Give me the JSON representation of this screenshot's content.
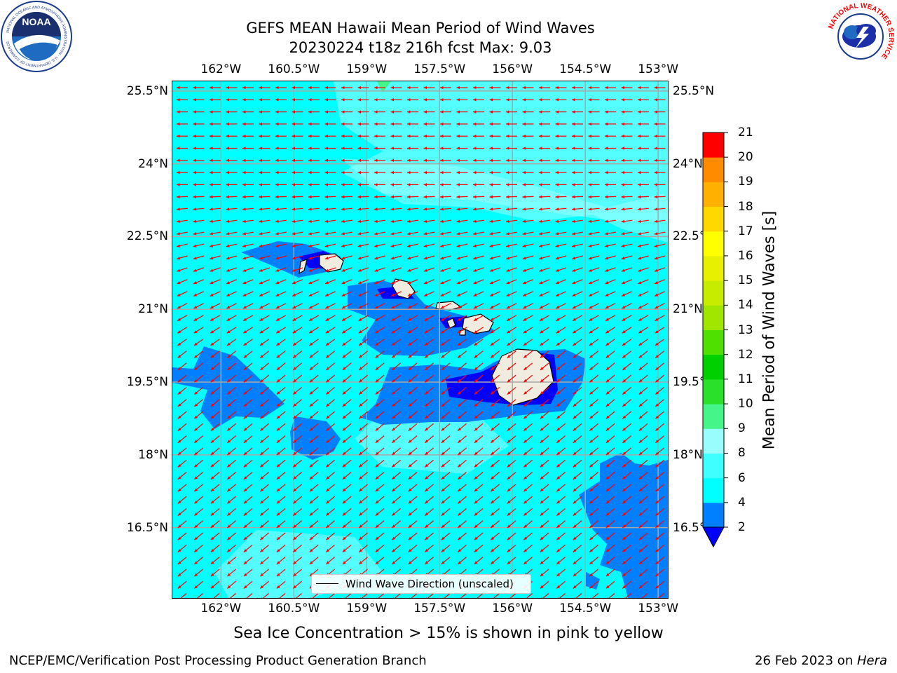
{
  "header": {
    "title_line1": "GEFS MEAN Hawaii Mean Period of Wind Waves",
    "title_line2": "20230224 t18z 216h fcst   Max: 9.03"
  },
  "logos": {
    "left": {
      "icon": "noaa-logo",
      "text": "NOAA",
      "ring_text": "NATIONAL OCEANIC AND ATMOSPHERIC ADMINISTRATION · U.S. DEPARTMENT OF COMMERCE"
    },
    "right": {
      "icon": "nws-logo",
      "ring_text": "NATIONAL WEATHER SERVICE"
    }
  },
  "map": {
    "lon_labels": [
      "162°W",
      "160.5°W",
      "159°W",
      "157.5°W",
      "156°W",
      "154.5°W",
      "153°W"
    ],
    "lat_labels": [
      "25.5°N",
      "24°N",
      "22.5°N",
      "21°N",
      "19.5°N",
      "18°N",
      "16.5°N"
    ],
    "lon_values": [
      -162,
      -160.5,
      -159,
      -157.5,
      -156,
      -154.5,
      -153
    ],
    "lat_values": [
      25.5,
      24,
      22.5,
      21,
      19.5,
      18,
      16.5
    ],
    "extent": {
      "lon": [
        -163,
        -152.8
      ],
      "lat": [
        15.05,
        25.7
      ]
    },
    "vector_color": "#ff0000",
    "vector_legend": "Wind Wave Direction (unscaled)",
    "vector_direction": "northeast-to-southwest"
  },
  "colorbar": {
    "label": "Mean Period of Wind Waves [s]",
    "tick_labels": [
      "2",
      "4",
      "6",
      "8",
      "9",
      "10",
      "11",
      "12",
      "13",
      "14",
      "15",
      "16",
      "17",
      "18",
      "19",
      "20",
      "21"
    ],
    "colors": [
      "#0080ff",
      "#00ffff",
      "#40ffff",
      "#9afdfd",
      "#46f58a",
      "#2be02b",
      "#00d000",
      "#50e000",
      "#a0e600",
      "#c8ec00",
      "#e6f000",
      "#ffff00",
      "#ffd800",
      "#ffb000",
      "#ff8c00",
      "#ff6400",
      "#ff3000",
      "#ff0000"
    ],
    "under_color": "#0000ff",
    "extend": "min"
  },
  "notes": {
    "sea_ice": "Sea Ice Concentration > 15% is shown in pink to yellow"
  },
  "footer": {
    "left": "NCEP/EMC/Verification Post Processing Product Generation Branch",
    "date": "26 Feb 2023 on ",
    "machine": "Hera"
  }
}
